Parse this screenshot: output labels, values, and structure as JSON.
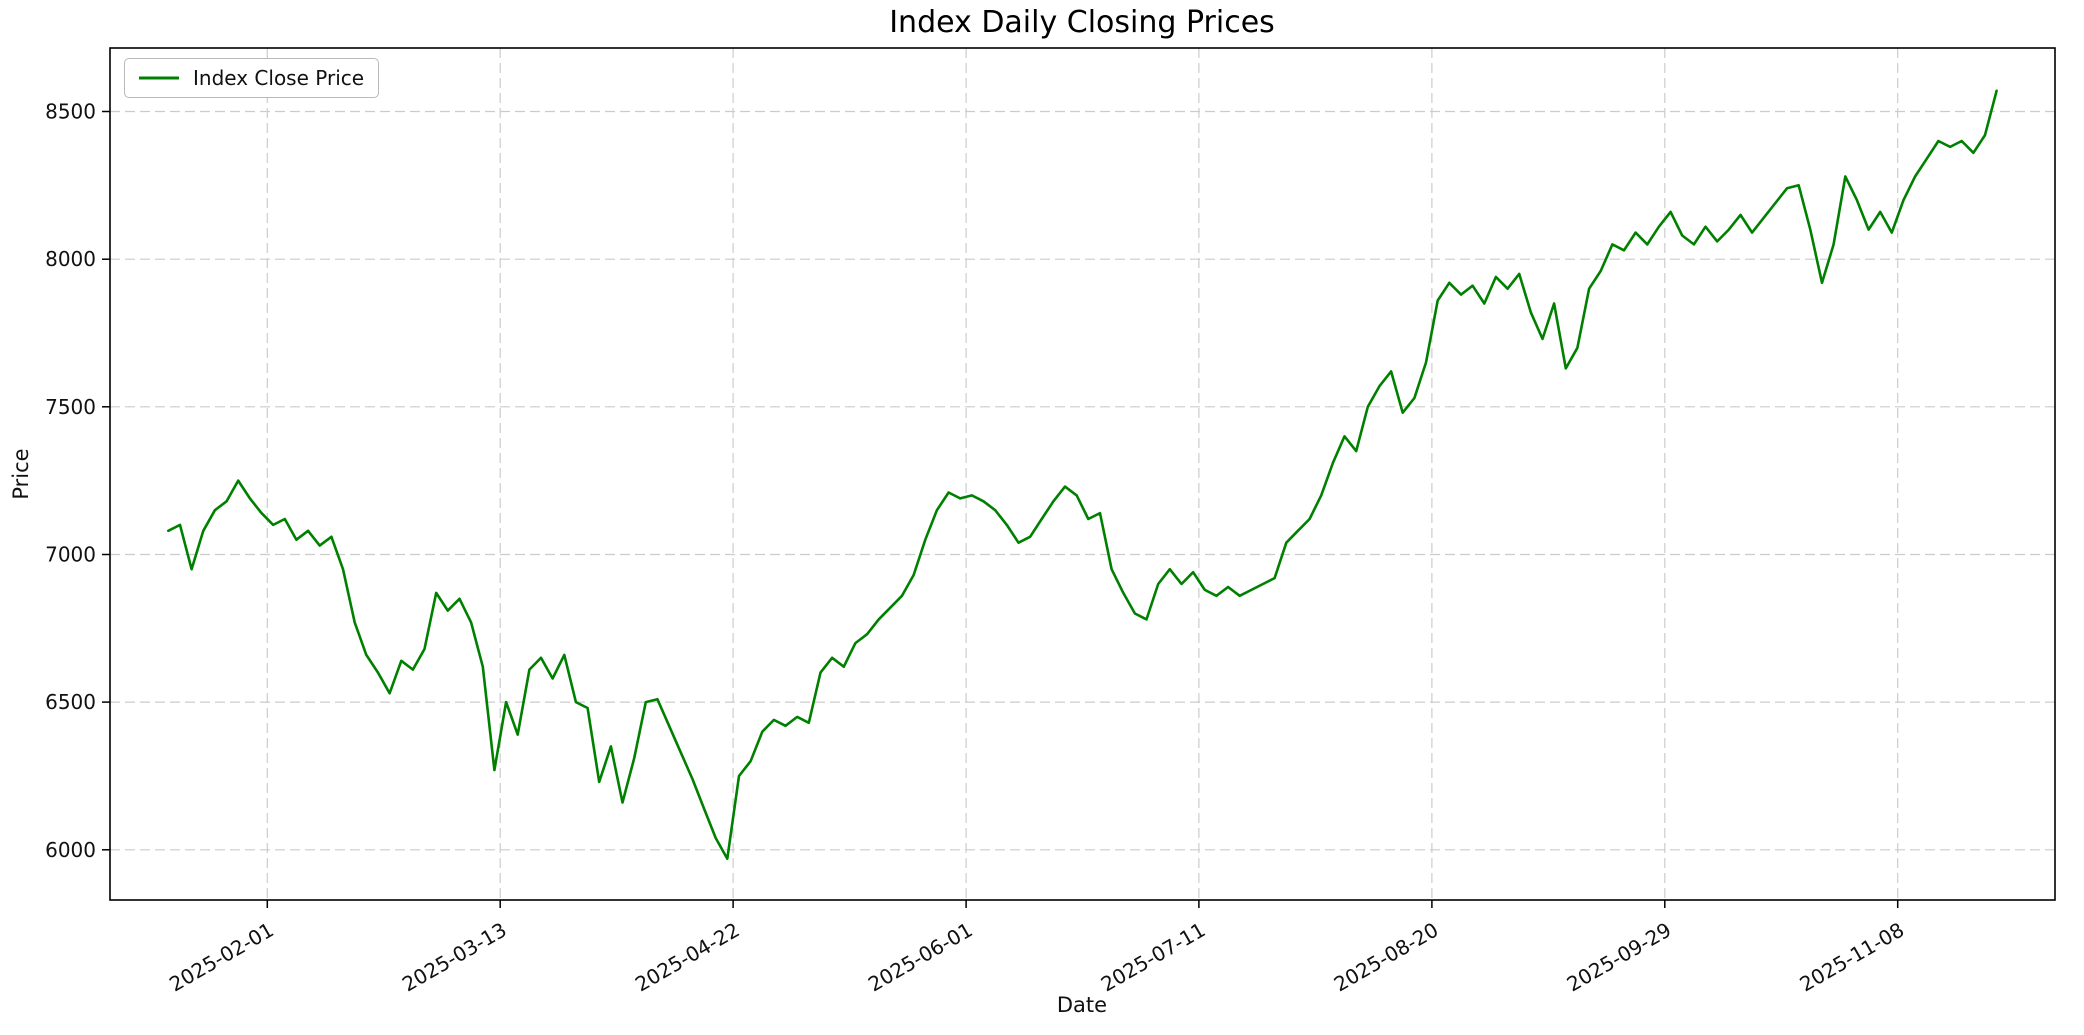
{
  "figure": {
    "background_color": "#ffffff"
  },
  "chart_data": {
    "type": "line",
    "title": "Index Daily Closing Prices",
    "xlabel": "Date",
    "ylabel": "Price",
    "ylim": [
      5830,
      8715
    ],
    "grid": true,
    "grid_style": "dashed",
    "line_color": "#008000",
    "legend": {
      "position": "upper left",
      "entries": [
        "Index Close Price"
      ]
    },
    "y_ticks": [
      6000,
      6500,
      7000,
      7500,
      8000,
      8500
    ],
    "x_ticks": [
      {
        "label": "2025-02-01",
        "t": 0.05414
      },
      {
        "label": "2025-03-13",
        "t": 0.18153
      },
      {
        "label": "2025-04-22",
        "t": 0.30892
      },
      {
        "label": "2025-06-01",
        "t": 0.43631
      },
      {
        "label": "2025-07-11",
        "t": 0.56369
      },
      {
        "label": "2025-08-20",
        "t": 0.69108
      },
      {
        "label": "2025-09-29",
        "t": 0.81847
      },
      {
        "label": "2025-11-08",
        "t": 0.94586
      }
    ],
    "series": [
      {
        "name": "Index Close Price",
        "color": "#008000",
        "values": [
          7080,
          7100,
          6950,
          7080,
          7150,
          7180,
          7250,
          7190,
          7140,
          7100,
          7120,
          7050,
          7080,
          7030,
          7060,
          6950,
          6770,
          6660,
          6600,
          6530,
          6640,
          6610,
          6680,
          6870,
          6810,
          6850,
          6770,
          6620,
          6270,
          6500,
          6390,
          6610,
          6650,
          6580,
          6660,
          6500,
          6480,
          6230,
          6350,
          6160,
          6310,
          6500,
          6510,
          6420,
          6330,
          6240,
          6140,
          6040,
          5970,
          6250,
          6300,
          6400,
          6440,
          6420,
          6450,
          6430,
          6600,
          6650,
          6620,
          6700,
          6730,
          6780,
          6820,
          6860,
          6930,
          7050,
          7150,
          7210,
          7190,
          7200,
          7180,
          7150,
          7100,
          7040,
          7060,
          7120,
          7180,
          7230,
          7200,
          7120,
          7140,
          6950,
          6870,
          6800,
          6780,
          6900,
          6950,
          6900,
          6940,
          6880,
          6860,
          6890,
          6860,
          6880,
          6900,
          6920,
          7040,
          7080,
          7120,
          7200,
          7310,
          7400,
          7350,
          7500,
          7570,
          7620,
          7480,
          7530,
          7650,
          7860,
          7920,
          7880,
          7910,
          7850,
          7940,
          7900,
          7950,
          7820,
          7730,
          7850,
          7630,
          7700,
          7900,
          7960,
          8050,
          8030,
          8090,
          8050,
          8110,
          8160,
          8080,
          8050,
          8110,
          8060,
          8100,
          8150,
          8090,
          8140,
          8190,
          8240,
          8250,
          8100,
          7920,
          8050,
          8280,
          8200,
          8100,
          8160,
          8090,
          8200,
          8280,
          8340,
          8400,
          8380,
          8400,
          8360,
          8420,
          8570
        ]
      }
    ]
  }
}
